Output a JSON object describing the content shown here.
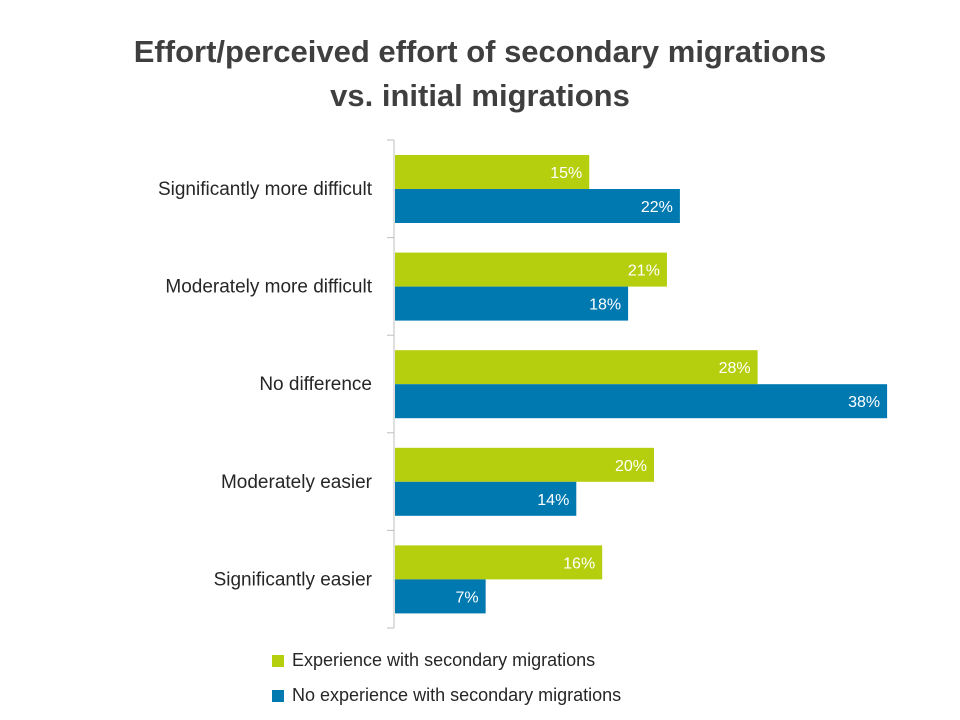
{
  "chart_data": {
    "type": "bar",
    "orientation": "horizontal",
    "title": "Effort/perceived effort of secondary migrations vs. initial migrations",
    "title_lines": [
      "Effort/perceived effort of secondary migrations",
      "vs. initial migrations"
    ],
    "categories": [
      "Significantly more difficult",
      "Moderately more difficult",
      "No difference",
      "Moderately easier",
      "Significantly easier"
    ],
    "series": [
      {
        "name": "Experience with secondary migrations",
        "values": [
          15,
          21,
          28,
          20,
          16
        ],
        "labels": [
          "15%",
          "21%",
          "28%",
          "20%",
          "16%"
        ],
        "color": "#b5cf0e"
      },
      {
        "name": "No experience with secondary migrations",
        "values": [
          22,
          18,
          38,
          14,
          7
        ],
        "labels": [
          "22%",
          "18%",
          "38%",
          "14%",
          "7%"
        ],
        "color": "#0079b0"
      }
    ],
    "value_unit": "%",
    "xlim": [
      0,
      38
    ],
    "grid": false,
    "legend_position": "bottom"
  },
  "colors": {
    "title": "#3f3f3f",
    "axis": "#bfbfbf",
    "label_text": "#ffffff",
    "category_text": "#262626"
  }
}
